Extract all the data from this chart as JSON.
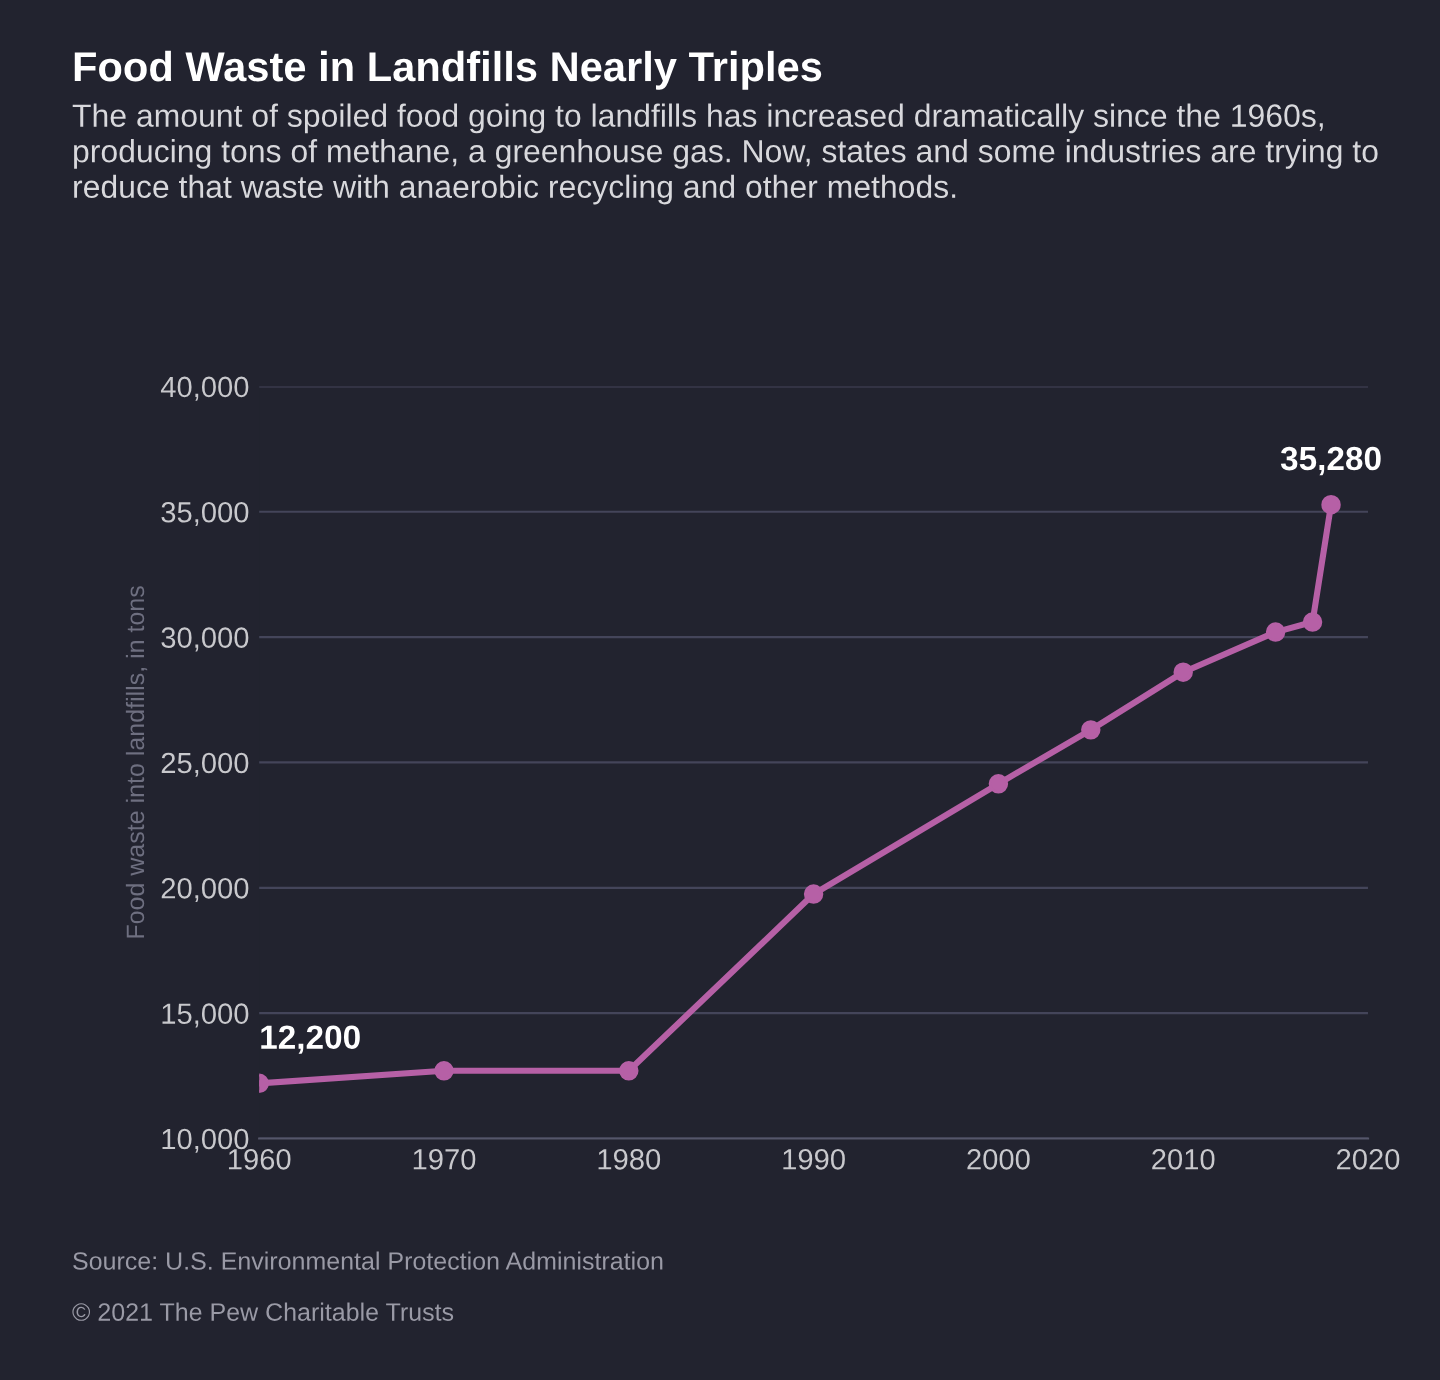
{
  "chart_data": {
    "type": "line",
    "title": "Food Waste in Landfills Nearly Triples",
    "subtitle": "The amount of spoiled food going to landfills has increased dramatically since the 1960s, producing tons of methane, a greenhouse gas. Now, states and some industries are trying to reduce that waste with anaerobic recycling and other methods.",
    "ylabel": "Food waste into landfills, in tons",
    "x": [
      1960,
      1970,
      1980,
      1990,
      2000,
      2005,
      2010,
      2015,
      2017,
      2018
    ],
    "series": [
      {
        "color": "#b660a6",
        "values": [
          12200,
          12700,
          12700,
          19750,
          24150,
          26300,
          28600,
          30200,
          30600,
          35280
        ],
        "value_labels": [
          "12,200",
          null,
          null,
          null,
          null,
          null,
          null,
          null,
          null,
          "35,280"
        ]
      }
    ],
    "xlim": [
      1960,
      2020
    ],
    "xticks": [
      1960,
      1970,
      1980,
      1990,
      2000,
      2010,
      2020
    ],
    "ylim": [
      10000,
      40000
    ],
    "yticks": [
      {
        "value": 10000,
        "label": "10,000"
      },
      {
        "value": 15000,
        "label": "15,000"
      },
      {
        "value": 20000,
        "label": "20,000"
      },
      {
        "value": 25000,
        "label": "25,000"
      },
      {
        "value": 30000,
        "label": "30,000"
      },
      {
        "value": 35000,
        "label": "35,000"
      },
      {
        "value": 40000,
        "label": "40,000"
      }
    ],
    "grid": "y",
    "marker": "circle",
    "line_style": "solid",
    "annotations": [
      "Source: U.S. Environmental Protection Administration",
      "© 2021 The Pew Charitable Trusts"
    ]
  }
}
